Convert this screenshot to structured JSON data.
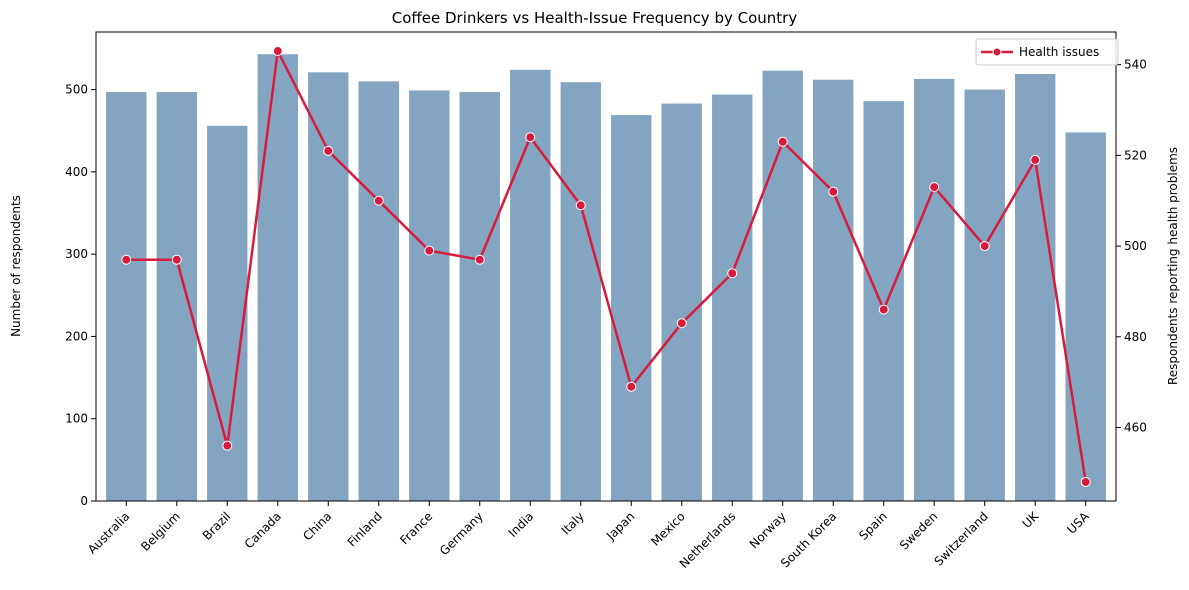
{
  "chart_data": {
    "type": "bar",
    "title": "Coffee Drinkers vs Health-Issue Frequency by Country",
    "categories": [
      "Australia",
      "Belgium",
      "Brazil",
      "Canada",
      "China",
      "Finland",
      "France",
      "Germany",
      "India",
      "Italy",
      "Japan",
      "Mexico",
      "Netherlands",
      "Norway",
      "South Korea",
      "Spain",
      "Sweden",
      "Switzerland",
      "UK",
      "USA"
    ],
    "series": [
      {
        "axis": "left",
        "mark": "bar",
        "color": "#84a5c1",
        "values": [
          497,
          497,
          456,
          543,
          521,
          510,
          499,
          497,
          524,
          509,
          469,
          483,
          494,
          523,
          512,
          486,
          513,
          500,
          519,
          448
        ]
      },
      {
        "name": "Health issues",
        "axis": "right",
        "mark": "line",
        "color": "#d81b3c",
        "values": [
          497,
          497,
          456,
          543,
          521,
          510,
          499,
          497,
          524,
          509,
          469,
          483,
          494,
          523,
          512,
          486,
          513,
          500,
          519,
          448
        ]
      }
    ],
    "ylabel": "Number of respondents",
    "y2label": "Respondents reporting health problems",
    "ylim": [
      0,
      570
    ],
    "y2lim": [
      443.8,
      547.2
    ],
    "yticks": [
      "0",
      "100",
      "200",
      "300",
      "400",
      "500"
    ],
    "y2ticks": [
      "460",
      "480",
      "500",
      "520",
      "540"
    ],
    "legend": {
      "position": "top-right",
      "entries": [
        "Health issues"
      ]
    },
    "grid": false
  }
}
